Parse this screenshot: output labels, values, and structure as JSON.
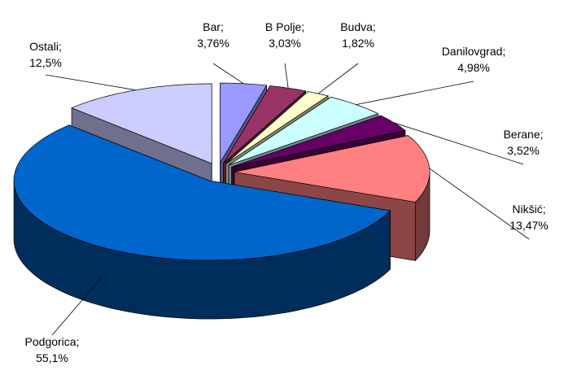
{
  "chart_data": {
    "type": "pie",
    "categories": [
      "Bar;",
      "B Polje;",
      "Budva;",
      "Danilovgrad;",
      "Berane;",
      "Nikšić;",
      "Podgorica;",
      "Ostali;"
    ],
    "values": [
      3.76,
      3.03,
      1.82,
      4.98,
      3.52,
      13.47,
      55.1,
      12.5
    ],
    "value_labels": [
      "3,76%",
      "3,03%",
      "1,82%",
      "4,98%",
      "3,52%",
      "13,47%",
      "55,1%",
      "12,5%"
    ],
    "colors": [
      "#9999ff",
      "#993366",
      "#ffffcc",
      "#ccffff",
      "#660066",
      "#ff8080",
      "#0066cc",
      "#ccccff"
    ]
  }
}
